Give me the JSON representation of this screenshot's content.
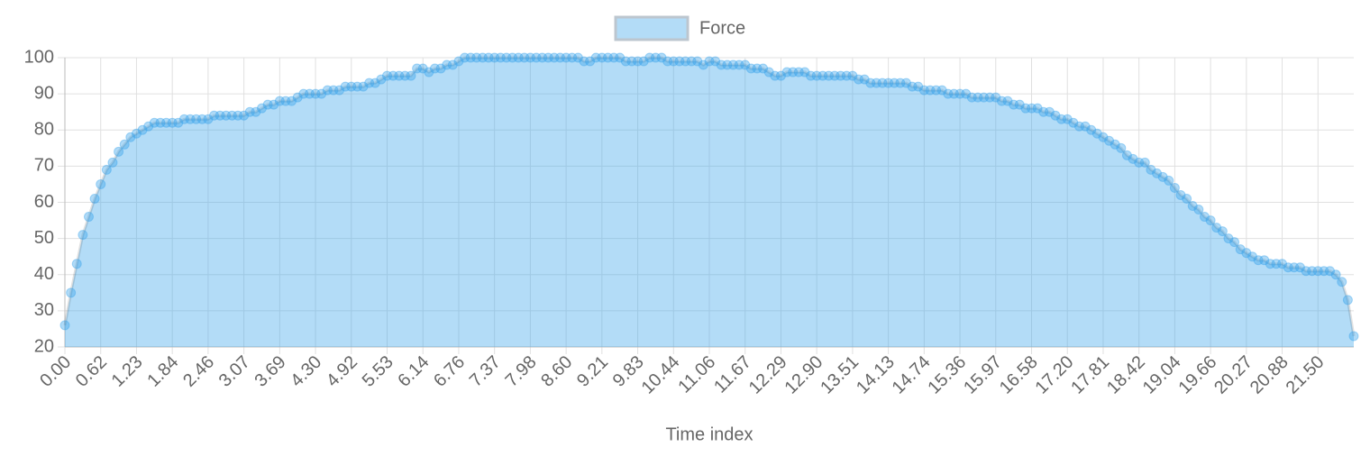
{
  "chart_data": {
    "type": "line",
    "fill": true,
    "grid": true,
    "legend": "top",
    "x_label": "Time index",
    "categories": [
      "0.00",
      null,
      null,
      null,
      null,
      null,
      "0.62",
      null,
      null,
      null,
      null,
      null,
      "1.23",
      null,
      null,
      null,
      null,
      null,
      "1.84",
      null,
      null,
      null,
      null,
      null,
      "2.46",
      null,
      null,
      null,
      null,
      null,
      "3.07",
      null,
      null,
      null,
      null,
      null,
      "3.69",
      null,
      null,
      null,
      null,
      null,
      "4.30",
      null,
      null,
      null,
      null,
      null,
      "4.92",
      null,
      null,
      null,
      null,
      null,
      "5.53",
      null,
      null,
      null,
      null,
      null,
      "6.14",
      null,
      null,
      null,
      null,
      null,
      "6.76",
      null,
      null,
      null,
      null,
      null,
      "7.37",
      null,
      null,
      null,
      null,
      null,
      "7.98",
      null,
      null,
      null,
      null,
      null,
      "8.60",
      null,
      null,
      null,
      null,
      null,
      "9.21",
      null,
      null,
      null,
      null,
      null,
      "9.83",
      null,
      null,
      null,
      null,
      null,
      "10.44",
      null,
      null,
      null,
      null,
      null,
      "11.06",
      null,
      null,
      null,
      null,
      null,
      "11.67",
      null,
      null,
      null,
      null,
      null,
      "12.29",
      null,
      null,
      null,
      null,
      null,
      "12.90",
      null,
      null,
      null,
      null,
      null,
      "13.51",
      null,
      null,
      null,
      null,
      null,
      "14.13",
      null,
      null,
      null,
      null,
      null,
      "14.74",
      null,
      null,
      null,
      null,
      null,
      "15.36",
      null,
      null,
      null,
      null,
      null,
      "15.97",
      null,
      null,
      null,
      null,
      null,
      "16.58",
      null,
      null,
      null,
      null,
      null,
      "17.20",
      null,
      null,
      null,
      null,
      null,
      "17.81",
      null,
      null,
      null,
      null,
      null,
      "18.42",
      null,
      null,
      null,
      null,
      null,
      "19.04",
      null,
      null,
      null,
      null,
      null,
      "19.66",
      null,
      null,
      null,
      null,
      null,
      "20.27",
      null,
      null,
      null,
      null,
      null,
      "20.88",
      null,
      null,
      null,
      null,
      null,
      "21.50",
      null,
      null,
      null,
      null,
      null,
      null
    ],
    "series": [
      {
        "name": "Force",
        "color": "#36a2eb",
        "values": [
          26,
          35,
          43,
          51,
          56,
          61,
          65,
          69,
          71,
          74,
          76,
          78,
          79,
          80,
          81,
          82,
          82,
          82,
          82,
          82,
          83,
          83,
          83,
          83,
          83,
          84,
          84,
          84,
          84,
          84,
          84,
          85,
          85,
          86,
          87,
          87,
          88,
          88,
          88,
          89,
          90,
          90,
          90,
          90,
          91,
          91,
          91,
          92,
          92,
          92,
          92,
          93,
          93,
          94,
          95,
          95,
          95,
          95,
          95,
          97,
          97,
          96,
          97,
          97,
          98,
          98,
          99,
          100,
          100,
          100,
          100,
          100,
          100,
          100,
          100,
          100,
          100,
          100,
          100,
          100,
          100,
          100,
          100,
          100,
          100,
          100,
          100,
          99,
          99,
          100,
          100,
          100,
          100,
          100,
          99,
          99,
          99,
          99,
          100,
          100,
          100,
          99,
          99,
          99,
          99,
          99,
          99,
          98,
          99,
          99,
          98,
          98,
          98,
          98,
          98,
          97,
          97,
          97,
          96,
          95,
          95,
          96,
          96,
          96,
          96,
          95,
          95,
          95,
          95,
          95,
          95,
          95,
          95,
          94,
          94,
          93,
          93,
          93,
          93,
          93,
          93,
          93,
          92,
          92,
          91,
          91,
          91,
          91,
          90,
          90,
          90,
          90,
          89,
          89,
          89,
          89,
          89,
          88,
          88,
          87,
          87,
          86,
          86,
          86,
          85,
          85,
          84,
          83,
          83,
          82,
          81,
          81,
          80,
          79,
          78,
          77,
          76,
          75,
          73,
          72,
          71,
          71,
          69,
          68,
          67,
          66,
          64,
          62,
          61,
          59,
          58,
          56,
          55,
          53,
          52,
          50,
          49,
          47,
          46,
          45,
          44,
          44,
          43,
          43,
          43,
          42,
          42,
          42,
          41,
          41,
          41,
          41,
          41,
          40,
          38,
          33,
          23
        ]
      }
    ],
    "ylim": [
      20,
      100
    ],
    "yticks": [
      20,
      30,
      40,
      50,
      60,
      70,
      80,
      90,
      100
    ]
  }
}
